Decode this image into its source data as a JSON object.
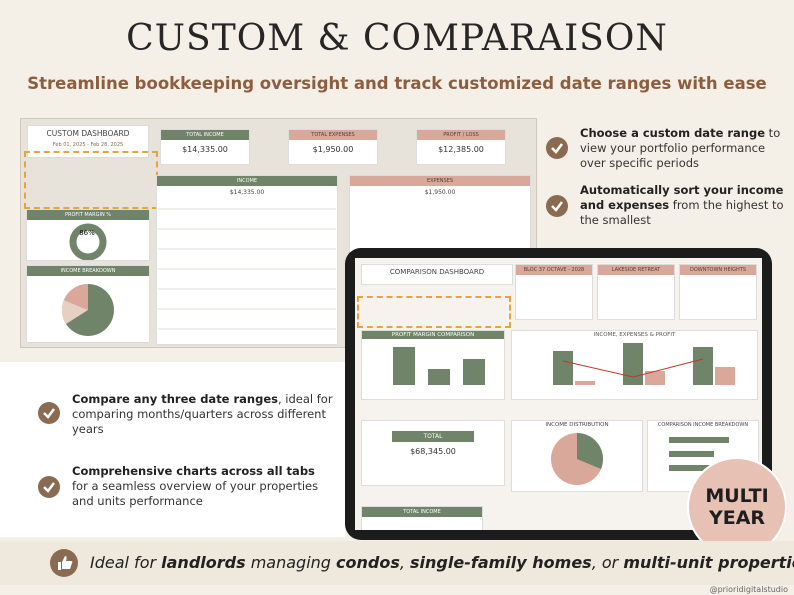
{
  "header": {
    "title": "CUSTOM & COMPARAISON",
    "subtitle": "Streamline bookkeeping oversight and track customized date ranges with ease"
  },
  "features": [
    {
      "bold": "Choose a custom date range",
      "text": " to view your portfolio performance over specific periods"
    },
    {
      "bold": "Automatically sort your income and expenses",
      "text": " from the highest to the smallest"
    },
    {
      "bold": "Compare any three date ranges",
      "text": ", ideal for comparing months/quarters across different years"
    },
    {
      "bold": "Comprehensive charts across all tabs",
      "text": " for a seamless overview of your properties and units performance"
    }
  ],
  "custom_dashboard": {
    "title": "CUSTOM DASHBOARD",
    "date_range": "Feb 01, 2025 - Feb 28, 2025",
    "cards": [
      {
        "label": "TOTAL INCOME",
        "value": "$14,335.00"
      },
      {
        "label": "TOTAL EXPENSES",
        "value": "$1,950.00"
      },
      {
        "label": "PROFIT / LOSS",
        "value": "$12,385.00"
      }
    ],
    "income_title": "INCOME",
    "income_total": "$14,335.00",
    "expenses_title": "EXPENSES",
    "expenses_total": "$1,950.00",
    "margin_title": "PROFIT MARGIN %",
    "margin_value": "86%",
    "breakdown_title": "INCOME BREAKDOWN"
  },
  "comparison_dashboard": {
    "title": "COMPARISON DASHBOARD",
    "properties": [
      "BLOC 37 OCTAVE - 2028",
      "LAKESIDE RETREAT",
      "DOWNTOWN HEIGHTS"
    ],
    "charts": [
      "PROFIT MARGIN COMPARISON",
      "INCOME, EXPENSES & PROFIT",
      "INCOME DISTRIBUTION",
      "COMPARISON INCOME BREAKDOWN"
    ],
    "total_label": "TOTAL",
    "total_value": "$68,345.00",
    "total_income": "TOTAL INCOME"
  },
  "badge": [
    "MULTI",
    "YEAR"
  ],
  "banner": [
    {
      "text": "Ideal for ",
      "bold": false
    },
    {
      "text": "landlords",
      "bold": true
    },
    {
      "text": " managing ",
      "bold": false
    },
    {
      "text": "condos",
      "bold": true
    },
    {
      "text": ", ",
      "bold": false
    },
    {
      "text": "single-family homes",
      "bold": true
    },
    {
      "text": ", or ",
      "bold": false
    },
    {
      "text": "multi-unit properties",
      "bold": true
    }
  ],
  "watermark": "@prioridigitalstudio"
}
